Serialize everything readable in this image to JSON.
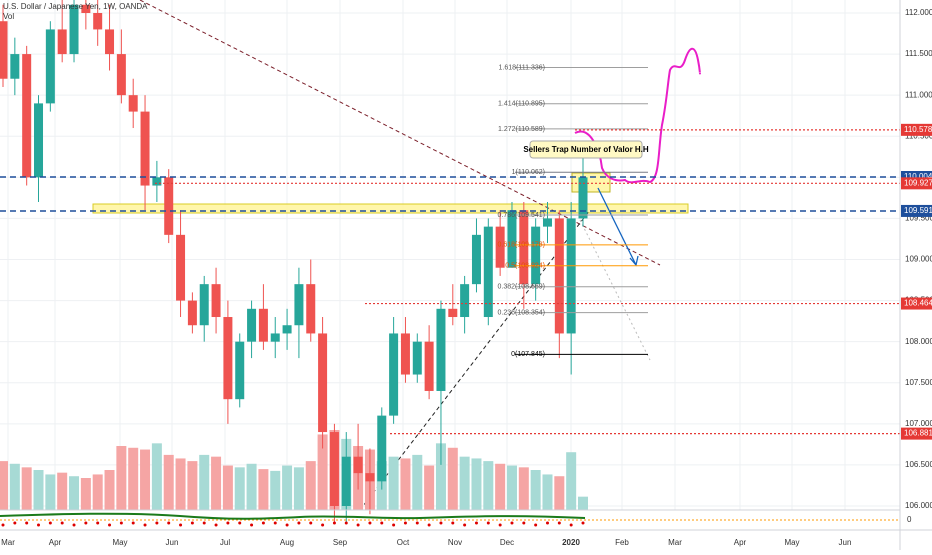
{
  "chart_data": {
    "type": "candlestick",
    "title": "U.S. Dollar / Japanese Yen, 1W, OANDA",
    "volume_label": "Vol",
    "annotation": "Sellers Trap Number of Valor  H.H",
    "time_labels": [
      "Mar",
      "Apr",
      "May",
      "Jun",
      "Jul",
      "Aug",
      "Sep",
      "Oct",
      "Nov",
      "Dec",
      "2020",
      "Feb",
      "Mar",
      "Apr",
      "May",
      "Jun"
    ],
    "open": [
      111.9,
      111.2,
      111.5,
      110.0,
      110.9,
      111.8,
      111.5,
      112.1,
      112.0,
      111.8,
      111.5,
      111.0,
      110.8,
      109.9,
      110.0,
      109.3,
      108.5,
      108.2,
      108.7,
      108.3,
      107.3,
      108.0,
      108.4,
      108.0,
      108.1,
      108.2,
      108.7,
      108.1,
      106.9,
      106.0,
      106.6,
      106.4,
      106.3,
      107.1,
      108.1,
      107.6,
      108.0,
      107.4,
      108.4,
      108.3,
      108.7,
      108.3,
      109.4,
      108.9,
      109.6,
      108.7,
      109.4,
      109.5,
      108.1,
      109.5
    ],
    "high": [
      112.1,
      111.7,
      111.6,
      111.0,
      111.9,
      112.2,
      112.2,
      112.3,
      112.2,
      112.1,
      111.8,
      111.2,
      111.0,
      110.2,
      110.1,
      109.6,
      108.6,
      108.8,
      108.9,
      108.5,
      108.1,
      108.5,
      108.7,
      108.3,
      108.4,
      108.9,
      109.0,
      108.3,
      107.0,
      106.9,
      107.0,
      106.7,
      107.2,
      108.3,
      108.3,
      108.1,
      108.2,
      108.5,
      108.7,
      108.8,
      109.5,
      109.5,
      109.6,
      109.7,
      109.7,
      109.5,
      109.7,
      109.6,
      109.7,
      110.3
    ],
    "low": [
      111.1,
      111.0,
      109.9,
      109.7,
      110.8,
      111.4,
      111.4,
      111.8,
      111.6,
      111.3,
      110.9,
      110.6,
      109.6,
      109.7,
      109.2,
      108.3,
      108.1,
      108.0,
      108.1,
      107.0,
      107.2,
      107.8,
      107.9,
      107.8,
      107.9,
      107.8,
      108.0,
      106.7,
      105.8,
      105.8,
      106.2,
      105.9,
      106.2,
      107.0,
      107.5,
      107.5,
      107.3,
      106.5,
      108.2,
      108.1,
      108.6,
      108.2,
      108.8,
      108.9,
      108.4,
      108.5,
      109.2,
      107.8,
      107.6,
      109.4
    ],
    "close": [
      111.2,
      111.5,
      110.0,
      110.9,
      111.8,
      111.5,
      112.1,
      112.0,
      111.8,
      111.5,
      111.0,
      110.8,
      109.9,
      110.0,
      109.3,
      108.5,
      108.2,
      108.7,
      108.3,
      107.3,
      108.0,
      108.4,
      108.0,
      108.1,
      108.2,
      108.7,
      108.1,
      106.9,
      106.0,
      106.6,
      106.4,
      106.3,
      107.1,
      108.1,
      107.6,
      108.0,
      107.4,
      108.4,
      108.3,
      108.7,
      109.3,
      109.4,
      108.9,
      109.6,
      108.7,
      109.4,
      109.5,
      108.1,
      109.5,
      110.0
    ],
    "volume": [
      55,
      52,
      48,
      45,
      40,
      42,
      38,
      36,
      40,
      45,
      72,
      70,
      68,
      75,
      62,
      58,
      55,
      62,
      60,
      50,
      48,
      52,
      46,
      44,
      50,
      48,
      55,
      85,
      90,
      80,
      72,
      68,
      55,
      60,
      58,
      62,
      50,
      75,
      70,
      60,
      58,
      55,
      52,
      50,
      48,
      45,
      40,
      38,
      65,
      15
    ],
    "ylim": [
      105.95,
      112.2
    ],
    "yticks": [
      {
        "value": 106,
        "label": "106.000"
      },
      {
        "value": 106.5,
        "label": "106.500"
      },
      {
        "value": 107,
        "label": "107.000"
      },
      {
        "value": 107.5,
        "label": "107.500"
      },
      {
        "value": 108,
        "label": "108.000"
      },
      {
        "value": 108.5,
        "label": "108.500"
      },
      {
        "value": 109,
        "label": "109.000"
      },
      {
        "value": 109.5,
        "label": "109.500"
      },
      {
        "value": 110,
        "label": "110.000"
      },
      {
        "value": 110.5,
        "label": "110.500"
      },
      {
        "value": 111,
        "label": "111.000"
      },
      {
        "value": 111.5,
        "label": "111.500"
      },
      {
        "value": 112,
        "label": "112.000"
      }
    ],
    "fib_levels": [
      {
        "value": 111.336,
        "label": "1.618(111.336)",
        "color": "#9e9e9e"
      },
      {
        "value": 110.895,
        "label": "1.414(110.895)",
        "color": "#9e9e9e"
      },
      {
        "value": 110.589,
        "label": "1.272(110.589)",
        "color": "#9e9e9e"
      },
      {
        "value": 110.062,
        "label": "1(110.062)",
        "color": "#787b86"
      },
      {
        "value": 109.541,
        "label": "0.786(109.541)",
        "color": "#9e9e9e"
      },
      {
        "value": 109.178,
        "label": "0.618(109.178)",
        "color": "#ff9800"
      },
      {
        "value": 108.924,
        "label": "0.5(108.924)",
        "color": "#ff9800"
      },
      {
        "value": 108.669,
        "label": "0.382(108.669)",
        "color": "#9e9e9e"
      },
      {
        "value": 108.354,
        "label": "0.236(108.354)",
        "color": "#9e9e9e"
      },
      {
        "value": 107.845,
        "label": "0(107.845)",
        "color": "#000000"
      }
    ],
    "price_lines": [
      {
        "value": 110.578,
        "label": "110.578",
        "color": "#e53935",
        "style": "dotted"
      },
      {
        "value": 110.004,
        "label": "110.004",
        "color": "#1e4f9c",
        "style": "dashed"
      },
      {
        "value": 109.927,
        "label": "109.927",
        "color": "#e53935",
        "style": "dotted"
      },
      {
        "value": 109.591,
        "label": "109.591",
        "color": "#1e4f9c",
        "style": "dashed"
      },
      {
        "value": 108.464,
        "label": "108.464",
        "color": "#e53935",
        "style": "dotted"
      },
      {
        "value": 106.881,
        "label": "106.881",
        "color": "#e53935",
        "style": "dotted"
      }
    ],
    "indicator_ticks": [
      0
    ]
  }
}
